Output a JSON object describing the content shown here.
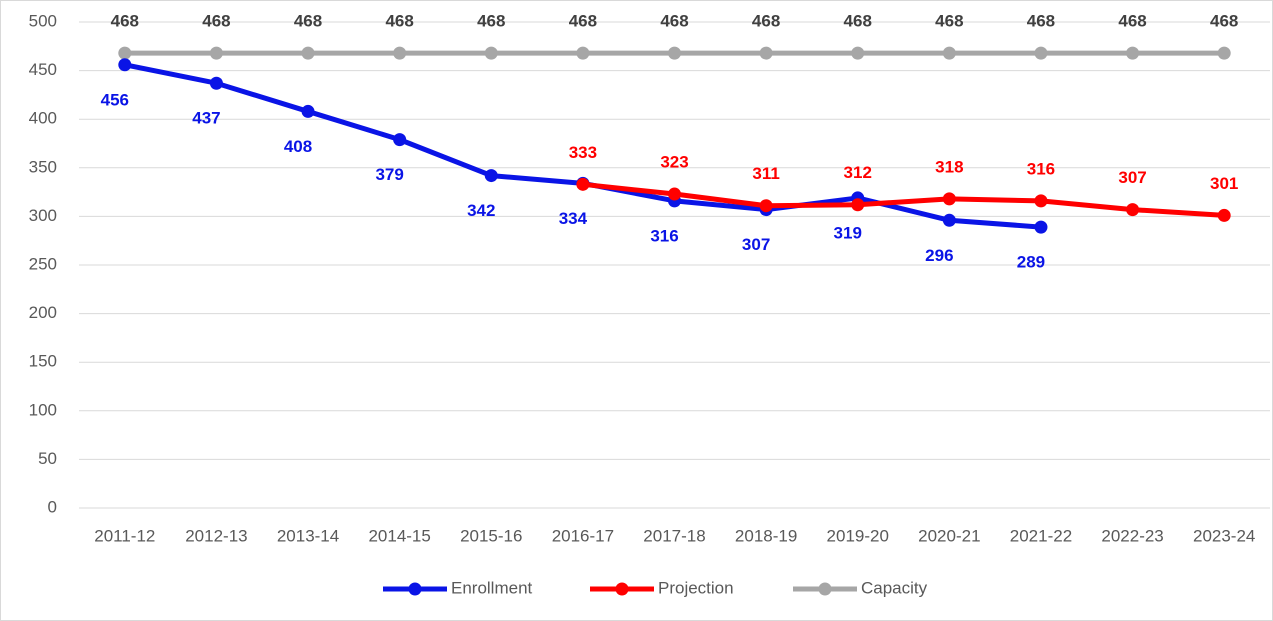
{
  "chart_data": {
    "type": "line",
    "categories": [
      "2011-12",
      "2012-13",
      "2013-14",
      "2014-15",
      "2015-16",
      "2016-17",
      "2017-18",
      "2018-19",
      "2019-20",
      "2020-21",
      "2021-22",
      "2022-23",
      "2023-24"
    ],
    "series": [
      {
        "name": "Enrollment",
        "color": "#0a14e6",
        "values": [
          456,
          437,
          408,
          379,
          342,
          334,
          316,
          307,
          319,
          296,
          289,
          null,
          null
        ]
      },
      {
        "name": "Projection",
        "color": "#ff0000",
        "values": [
          null,
          null,
          null,
          null,
          null,
          333,
          323,
          311,
          312,
          318,
          316,
          307,
          301
        ]
      },
      {
        "name": "Capacity",
        "color": "#a6a6a6",
        "values": [
          468,
          468,
          468,
          468,
          468,
          468,
          468,
          468,
          468,
          468,
          468,
          468,
          468
        ]
      }
    ],
    "ylim": [
      0,
      500
    ],
    "yticks": [
      0,
      50,
      100,
      150,
      200,
      250,
      300,
      350,
      400,
      450,
      500
    ],
    "grid": true,
    "legend": "bottom"
  }
}
